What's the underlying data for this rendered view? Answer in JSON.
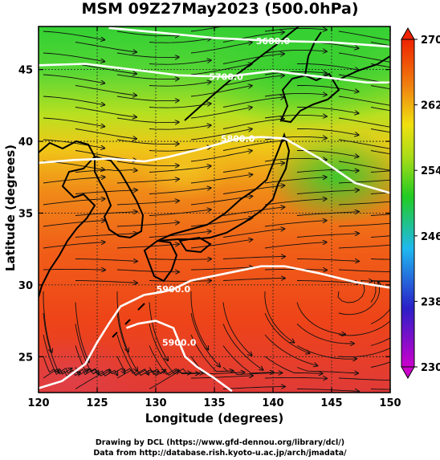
{
  "title": "MSM 09Z27May2023 (500.0hPa)",
  "x_axis": {
    "label": "Longitude (degrees)",
    "ticks": [
      120,
      125,
      130,
      135,
      140,
      145,
      150
    ],
    "range": [
      120,
      150
    ]
  },
  "y_axis": {
    "label": "Latitude  (degrees)",
    "ticks": [
      25,
      30,
      35,
      40,
      45
    ],
    "range": [
      22.5,
      48
    ]
  },
  "colorbar": {
    "ticks": [
      230,
      238,
      246,
      254,
      262,
      270
    ],
    "range": [
      230,
      270
    ],
    "colors": [
      "#cc00cc",
      "#2222cc",
      "#1fb8f0",
      "#22d022",
      "#dede10",
      "#f07a10",
      "#ee2200"
    ]
  },
  "contours": [
    {
      "label": "5600.0",
      "points": [
        [
          126,
          47.9
        ],
        [
          130,
          47.6
        ],
        [
          135,
          47.2
        ],
        [
          140,
          47.0
        ],
        [
          145,
          46.9
        ],
        [
          150,
          46.6
        ]
      ]
    },
    {
      "label": "5700.0",
      "points": [
        [
          120,
          45.3
        ],
        [
          124,
          45.4
        ],
        [
          128,
          45.0
        ],
        [
          132,
          44.6
        ],
        [
          136,
          44.5
        ],
        [
          140,
          44.9
        ],
        [
          144,
          44.5
        ],
        [
          148,
          44.1
        ],
        [
          150,
          44.1
        ]
      ]
    },
    {
      "label": "5800.0",
      "points": [
        [
          120,
          38.5
        ],
        [
          123,
          38.7
        ],
        [
          126,
          38.8
        ],
        [
          129,
          38.6
        ],
        [
          131,
          38.9
        ],
        [
          134,
          39.5
        ],
        [
          137,
          40.2
        ],
        [
          139,
          40.3
        ],
        [
          141,
          40.2
        ],
        [
          144,
          38.8
        ],
        [
          147,
          37.1
        ],
        [
          150,
          36.4
        ]
      ]
    },
    {
      "label": "5900.0",
      "points": [
        [
          120,
          22.8
        ],
        [
          122,
          23.3
        ],
        [
          124,
          24.5
        ],
        [
          125,
          26.0
        ],
        [
          126,
          27.3
        ],
        [
          127,
          28.5
        ],
        [
          129,
          29.3
        ],
        [
          130.5,
          29.5
        ],
        [
          131.5,
          29.7
        ],
        [
          133,
          30.3
        ],
        [
          136,
          30.8
        ],
        [
          139,
          31.3
        ],
        [
          141,
          31.3
        ],
        [
          144,
          30.8
        ],
        [
          147,
          30.2
        ],
        [
          150,
          29.8
        ]
      ]
    },
    {
      "label": "5900.0",
      "points": [
        [
          127.5,
          27.0
        ],
        [
          128.5,
          27.3
        ],
        [
          130,
          27.5
        ],
        [
          131.5,
          27.0
        ],
        [
          132,
          26.0
        ],
        [
          132.5,
          25.0
        ],
        [
          133.5,
          24.3
        ],
        [
          135,
          23.5
        ],
        [
          136.5,
          22.6
        ]
      ]
    }
  ],
  "credits": [
    "Drawing by DCL (https://www.gfd-dennou.org/library/dcl/)",
    "Data from http://database.rish.kyoto-u.ac.jp/arch/jmadata/"
  ]
}
